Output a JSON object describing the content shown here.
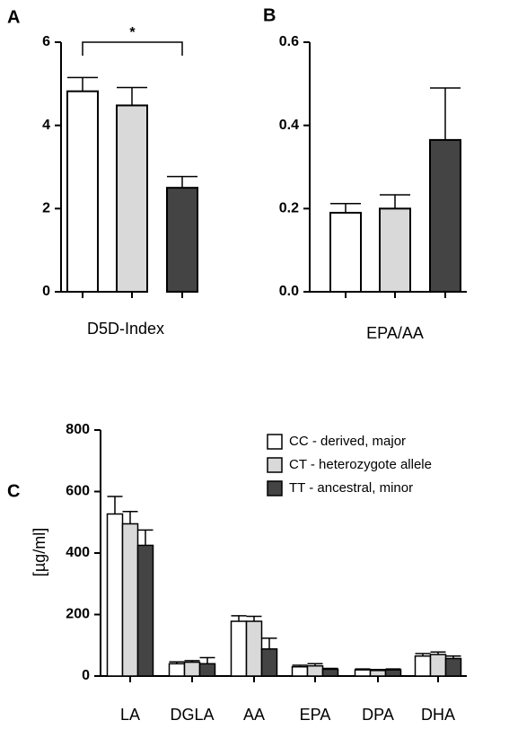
{
  "chart_data": [
    {
      "type": "bar",
      "panel_label": "A",
      "xlabel": "D5D-Index",
      "categories": [
        null,
        null,
        null
      ],
      "values": [
        4.82,
        4.48,
        2.5
      ],
      "errors": [
        0.33,
        0.43,
        0.27
      ],
      "colors": [
        "#ffffff",
        "#d9d9d9",
        "#444444"
      ],
      "ylim": [
        0,
        6
      ],
      "yticks": [
        0,
        2,
        4,
        6
      ],
      "annotation": {
        "text": "*",
        "from": 0,
        "to": 2
      }
    },
    {
      "type": "bar",
      "panel_label": "B",
      "xlabel": "EPA/AA",
      "categories": [
        null,
        null,
        null
      ],
      "values": [
        0.19,
        0.2,
        0.365
      ],
      "errors": [
        0.022,
        0.033,
        0.125
      ],
      "colors": [
        "#ffffff",
        "#d9d9d9",
        "#444444"
      ],
      "ylim": [
        0,
        0.6
      ],
      "yticks": [
        {
          "value": 0,
          "label": "0.0"
        },
        0.2,
        0.4,
        0.6
      ]
    },
    {
      "type": "grouped-bar",
      "panel_label": "C",
      "ylabel": "[µg/ml]",
      "categories": [
        "LA",
        "DGLA",
        "AA",
        "EPA",
        "DPA",
        "DHA"
      ],
      "series": [
        {
          "name": "CC - derived, major",
          "color": "#ffffff",
          "values": [
            527,
            40,
            178,
            30,
            20,
            65
          ],
          "errors": [
            57,
            6,
            18,
            5,
            3,
            8
          ]
        },
        {
          "name": "CT - heterozygote allele",
          "color": "#d9d9d9",
          "values": [
            495,
            45,
            178,
            33,
            18,
            70
          ],
          "errors": [
            40,
            5,
            16,
            7,
            3,
            8
          ]
        },
        {
          "name": "TT - ancestral, minor",
          "color": "#444444",
          "values": [
            425,
            40,
            88,
            22,
            20,
            57
          ],
          "errors": [
            50,
            20,
            35,
            3,
            3,
            8
          ]
        }
      ],
      "ylim": [
        0,
        800
      ],
      "yticks": [
        0,
        200,
        400,
        600,
        800
      ]
    }
  ]
}
